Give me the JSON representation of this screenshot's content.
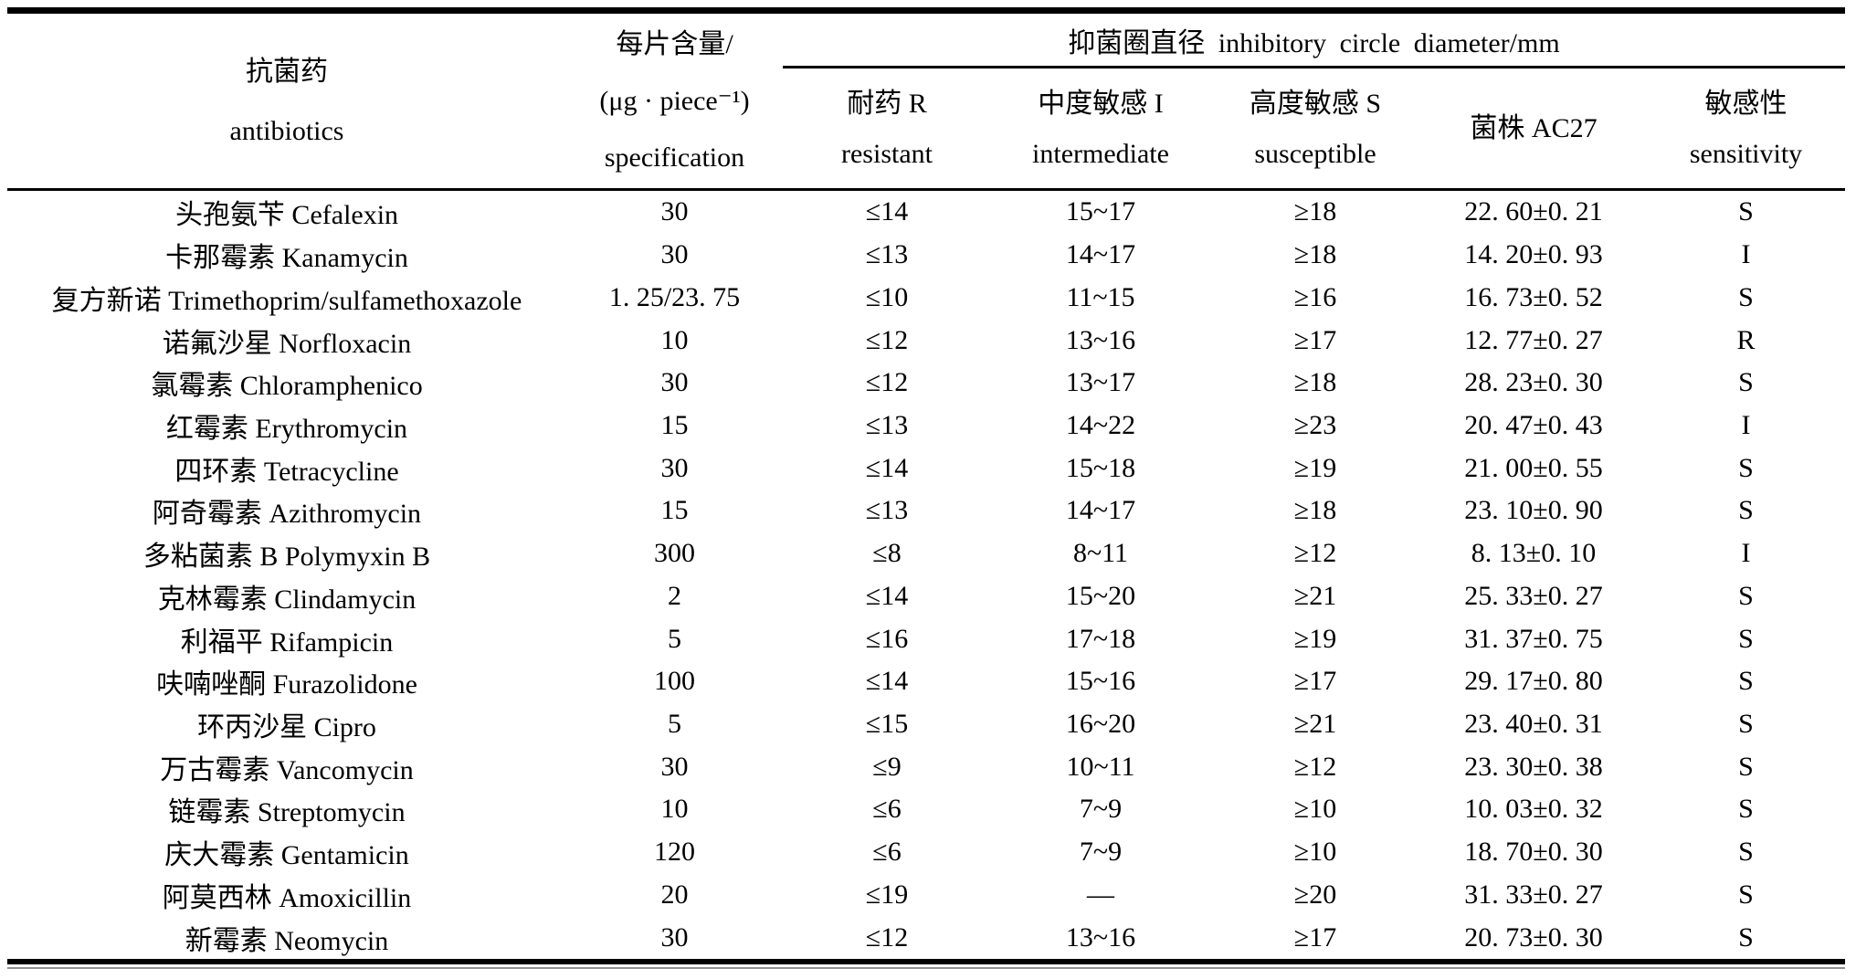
{
  "table": {
    "headers": {
      "antibiotics": {
        "zh": "抗菌药",
        "en": "antibiotics"
      },
      "specification": {
        "line1": "每片含量/",
        "line2": "(μg · piece⁻¹)",
        "line3": "specification"
      },
      "group": "抑菌圈直径 inhibitory circle diameter/mm",
      "resistant": {
        "zh": "耐药 R",
        "en": "resistant"
      },
      "intermediate": {
        "zh": "中度敏感 I",
        "en": "intermediate"
      },
      "susceptible": {
        "zh": "高度敏感 S",
        "en": "susceptible"
      },
      "strain": {
        "zh": "菌株 AC27"
      },
      "sensitivity": {
        "zh": "敏感性",
        "en": "sensitivity"
      }
    },
    "rows": [
      {
        "name": "头孢氨苄 Cefalexin",
        "spec": "30",
        "r": "≤14",
        "i": "15~17",
        "s": "≥18",
        "ac27": "22. 60±0. 21",
        "sens": "S"
      },
      {
        "name": "卡那霉素 Kanamycin",
        "spec": "30",
        "r": "≤13",
        "i": "14~17",
        "s": "≥18",
        "ac27": "14. 20±0. 93",
        "sens": "I"
      },
      {
        "name": "复方新诺 Trimethoprim/sulfamethoxazole",
        "spec": "1. 25/23. 75",
        "r": "≤10",
        "i": "11~15",
        "s": "≥16",
        "ac27": "16. 73±0. 52",
        "sens": "S"
      },
      {
        "name": "诺氟沙星 Norfloxacin",
        "spec": "10",
        "r": "≤12",
        "i": "13~16",
        "s": "≥17",
        "ac27": "12. 77±0. 27",
        "sens": "R"
      },
      {
        "name": "氯霉素 Chloramphenico",
        "spec": "30",
        "r": "≤12",
        "i": "13~17",
        "s": "≥18",
        "ac27": "28. 23±0. 30",
        "sens": "S"
      },
      {
        "name": "红霉素 Erythromycin",
        "spec": "15",
        "r": "≤13",
        "i": "14~22",
        "s": "≥23",
        "ac27": "20. 47±0. 43",
        "sens": "I"
      },
      {
        "name": "四环素 Tetracycline",
        "spec": "30",
        "r": "≤14",
        "i": "15~18",
        "s": "≥19",
        "ac27": "21. 00±0. 55",
        "sens": "S"
      },
      {
        "name": "阿奇霉素 Azithromycin",
        "spec": "15",
        "r": "≤13",
        "i": "14~17",
        "s": "≥18",
        "ac27": "23. 10±0. 90",
        "sens": "S"
      },
      {
        "name": "多粘菌素 B Polymyxin B",
        "spec": "300",
        "r": "≤8",
        "i": "8~11",
        "s": "≥12",
        "ac27": "8. 13±0. 10",
        "sens": "I"
      },
      {
        "name": "克林霉素 Clindamycin",
        "spec": "2",
        "r": "≤14",
        "i": "15~20",
        "s": "≥21",
        "ac27": "25. 33±0. 27",
        "sens": "S"
      },
      {
        "name": "利福平 Rifampicin",
        "spec": "5",
        "r": "≤16",
        "i": "17~18",
        "s": "≥19",
        "ac27": "31. 37±0. 75",
        "sens": "S"
      },
      {
        "name": "呋喃唑酮 Furazolidone",
        "spec": "100",
        "r": "≤14",
        "i": "15~16",
        "s": "≥17",
        "ac27": "29. 17±0. 80",
        "sens": "S"
      },
      {
        "name": "环丙沙星 Cipro",
        "spec": "5",
        "r": "≤15",
        "i": "16~20",
        "s": "≥21",
        "ac27": "23. 40±0. 31",
        "sens": "S"
      },
      {
        "name": "万古霉素 Vancomycin",
        "spec": "30",
        "r": "≤9",
        "i": "10~11",
        "s": "≥12",
        "ac27": "23. 30±0. 38",
        "sens": "S"
      },
      {
        "name": "链霉素 Streptomycin",
        "spec": "10",
        "r": "≤6",
        "i": "7~9",
        "s": "≥10",
        "ac27": "10. 03±0. 32",
        "sens": "S"
      },
      {
        "name": "庆大霉素 Gentamicin",
        "spec": "120",
        "r": "≤6",
        "i": "7~9",
        "s": "≥10",
        "ac27": "18. 70±0. 30",
        "sens": "S"
      },
      {
        "name": "阿莫西林 Amoxicillin",
        "spec": "20",
        "r": "≤19",
        "i": "—",
        "s": "≥20",
        "ac27": "31. 33±0. 27",
        "sens": "S"
      },
      {
        "name": "新霉素 Neomycin",
        "spec": "30",
        "r": "≤12",
        "i": "13~16",
        "s": "≥17",
        "ac27": "20. 73±0. 30",
        "sens": "S"
      }
    ]
  }
}
